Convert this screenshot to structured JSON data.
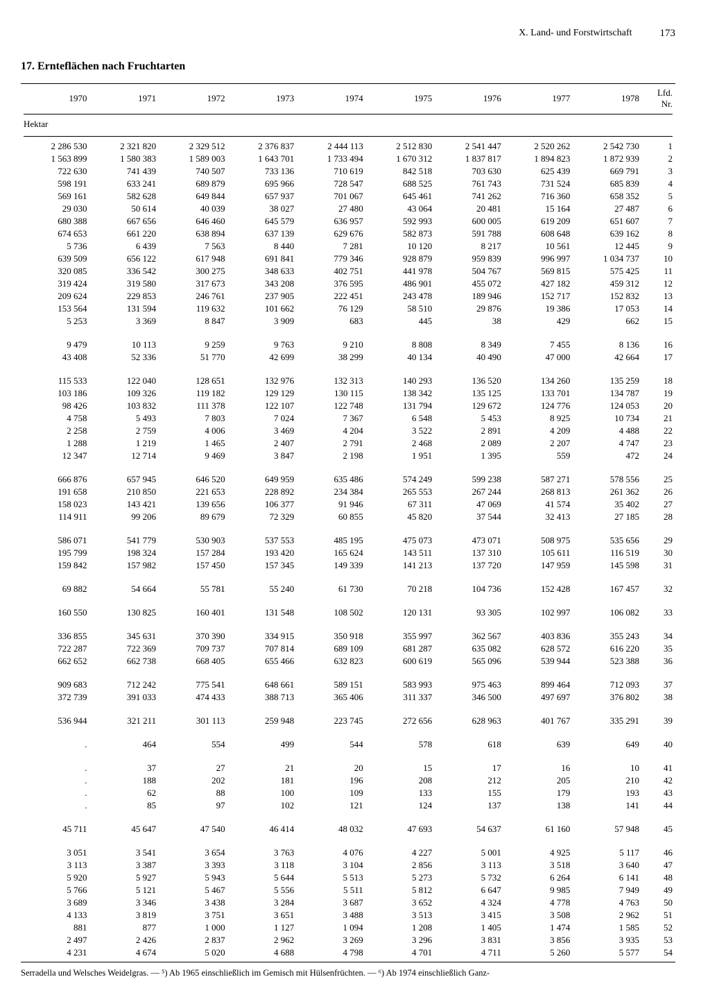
{
  "header": {
    "section": "X. Land- und Forstwirtschaft",
    "page": "173"
  },
  "title": "17. Ernteflächen nach Fruchtarten",
  "unit": "Hektar",
  "lfd_header": "Lfd.\nNr.",
  "years": [
    "1970",
    "1971",
    "1972",
    "1973",
    "1974",
    "1975",
    "1976",
    "1977",
    "1978"
  ],
  "groups": [
    [
      [
        "2 286 530",
        "2 321 820",
        "2 329 512",
        "2 376 837",
        "2 444 113",
        "2 512 830",
        "2 541 447",
        "2 520 262",
        "2 542 730",
        "1"
      ],
      [
        "1 563 899",
        "1 580 383",
        "1 589 003",
        "1 643 701",
        "1 733 494",
        "1 670 312",
        "1 837 817",
        "1 894 823",
        "1 872 939",
        "2"
      ],
      [
        "722 630",
        "741 439",
        "740 507",
        "733 136",
        "710 619",
        "842 518",
        "703 630",
        "625 439",
        "669 791",
        "3"
      ],
      [
        "598 191",
        "633 241",
        "689 879",
        "695 966",
        "728 547",
        "688 525",
        "761 743",
        "731 524",
        "685 839",
        "4"
      ],
      [
        "569 161",
        "582 628",
        "649 844",
        "657 937",
        "701 067",
        "645 461",
        "741 262",
        "716 360",
        "658 352",
        "5"
      ],
      [
        "29 030",
        "50 614",
        "40 039",
        "38 027",
        "27 480",
        "43 064",
        "20 481",
        "15 164",
        "27 487",
        "6"
      ],
      [
        "680 388",
        "667 656",
        "646 460",
        "645 579",
        "636 957",
        "592 993",
        "600 005",
        "619 209",
        "651 607",
        "7"
      ],
      [
        "674 653",
        "661 220",
        "638 894",
        "637 139",
        "629 676",
        "582 873",
        "591 788",
        "608 648",
        "639 162",
        "8"
      ],
      [
        "5 736",
        "6 439",
        "7 563",
        "8 440",
        "7 281",
        "10 120",
        "8 217",
        "10 561",
        "12 445",
        "9"
      ],
      [
        "639 509",
        "656 122",
        "617 948",
        "691 841",
        "779 346",
        "928 879",
        "959 839",
        "996 997",
        "1 034 737",
        "10"
      ],
      [
        "320 085",
        "336 542",
        "300 275",
        "348 633",
        "402 751",
        "441 978",
        "504 767",
        "569 815",
        "575 425",
        "11"
      ],
      [
        "319 424",
        "319 580",
        "317 673",
        "343 208",
        "376 595",
        "486 901",
        "455 072",
        "427 182",
        "459 312",
        "12"
      ],
      [
        "209 624",
        "229 853",
        "246 761",
        "237 905",
        "222 451",
        "243 478",
        "189 946",
        "152 717",
        "152 832",
        "13"
      ],
      [
        "153 564",
        "131 594",
        "119 632",
        "101 662",
        "76 129",
        "58 510",
        "29 876",
        "19 386",
        "17 053",
        "14"
      ],
      [
        "5 253",
        "3 369",
        "8 847",
        "3 909",
        "683",
        "445",
        "38",
        "429",
        "662",
        "15"
      ]
    ],
    [
      [
        "9 479",
        "10 113",
        "9 259",
        "9 763",
        "9 210",
        "8 808",
        "8 349",
        "7 455",
        "8 136",
        "16"
      ],
      [
        "43 408",
        "52 336",
        "51 770",
        "42 699",
        "38 299",
        "40 134",
        "40 490",
        "47 000",
        "42 664",
        "17"
      ]
    ],
    [
      [
        "115 533",
        "122 040",
        "128 651",
        "132 976",
        "132 313",
        "140 293",
        "136 520",
        "134 260",
        "135 259",
        "18"
      ],
      [
        "103 186",
        "109 326",
        "119 182",
        "129 129",
        "130 115",
        "138 342",
        "135 125",
        "133 701",
        "134 787",
        "19"
      ],
      [
        "98 426",
        "103 832",
        "111 378",
        "122 107",
        "122 748",
        "131 794",
        "129 672",
        "124 776",
        "124 053",
        "20"
      ],
      [
        "4 758",
        "5 493",
        "7 803",
        "7 024",
        "7 367",
        "6 548",
        "5 453",
        "8 925",
        "10 734",
        "21"
      ],
      [
        "2 258",
        "2 759",
        "4 006",
        "3 469",
        "4 204",
        "3 522",
        "2 891",
        "4 209",
        "4 488",
        "22"
      ],
      [
        "1 288",
        "1 219",
        "1 465",
        "2 407",
        "2 791",
        "2 468",
        "2 089",
        "2 207",
        "4 747",
        "23"
      ],
      [
        "12 347",
        "12 714",
        "9 469",
        "3 847",
        "2 198",
        "1 951",
        "1 395",
        "559",
        "472",
        "24"
      ]
    ],
    [
      [
        "666 876",
        "657 945",
        "646 520",
        "649 959",
        "635 486",
        "574 249",
        "599 238",
        "587 271",
        "578 556",
        "25"
      ],
      [
        "191 658",
        "210 850",
        "221 653",
        "228 892",
        "234 384",
        "265 553",
        "267 244",
        "268 813",
        "261 362",
        "26"
      ],
      [
        "158 023",
        "143 421",
        "139 656",
        "106 377",
        "91 946",
        "67 311",
        "47 069",
        "41 574",
        "35 402",
        "27"
      ],
      [
        "114 911",
        "99 206",
        "89 679",
        "72 329",
        "60 855",
        "45 820",
        "37 544",
        "32 413",
        "27 185",
        "28"
      ]
    ],
    [
      [
        "586 071",
        "541 779",
        "530 903",
        "537 553",
        "485 195",
        "475 073",
        "473 071",
        "508 975",
        "535 656",
        "29"
      ],
      [
        "195 799",
        "198 324",
        "157 284",
        "193 420",
        "165 624",
        "143 511",
        "137 310",
        "105 611",
        "116 519",
        "30"
      ],
      [
        "159 842",
        "157 982",
        "157 450",
        "157 345",
        "149 339",
        "141 213",
        "137 720",
        "147 959",
        "145 598",
        "31"
      ]
    ],
    [
      [
        "69 882",
        "54 664",
        "55 781",
        "55 240",
        "61 730",
        "70 218",
        "104 736",
        "152 428",
        "167 457",
        "32"
      ]
    ],
    [
      [
        "160 550",
        "130 825",
        "160 401",
        "131 548",
        "108 502",
        "120 131",
        "93 305",
        "102 997",
        "106 082",
        "33"
      ]
    ],
    [
      [
        "336 855",
        "345 631",
        "370 390",
        "334 915",
        "350 918",
        "355 997",
        "362 567",
        "403 836",
        "355 243",
        "34"
      ],
      [
        "722 287",
        "722 369",
        "709 737",
        "707 814",
        "689 109",
        "681 287",
        "635 082",
        "628 572",
        "616 220",
        "35"
      ],
      [
        "662 652",
        "662 738",
        "668 405",
        "655 466",
        "632 823",
        "600 619",
        "565 096",
        "539 944",
        "523 388",
        "36"
      ]
    ],
    [
      [
        "909 683",
        "712 242",
        "775 541",
        "648 661",
        "589 151",
        "583 993",
        "975 463",
        "899 464",
        "712 093",
        "37"
      ],
      [
        "372 739",
        "391 033",
        "474 433",
        "388 713",
        "365 406",
        "311 337",
        "346 500",
        "497 697",
        "376 802",
        "38"
      ]
    ],
    [
      [
        "536 944",
        "321 211",
        "301 113",
        "259 948",
        "223 745",
        "272 656",
        "628 963",
        "401 767",
        "335 291",
        "39"
      ]
    ],
    [
      [
        ".",
        "464",
        "554",
        "499",
        "544",
        "578",
        "618",
        "639",
        "649",
        "40"
      ]
    ],
    [
      [
        ".",
        "37",
        "27",
        "21",
        "20",
        "15",
        "17",
        "16",
        "10",
        "41"
      ],
      [
        ".",
        "188",
        "202",
        "181",
        "196",
        "208",
        "212",
        "205",
        "210",
        "42"
      ],
      [
        ".",
        "62",
        "88",
        "100",
        "109",
        "133",
        "155",
        "179",
        "193",
        "43"
      ],
      [
        ".",
        "85",
        "97",
        "102",
        "121",
        "124",
        "137",
        "138",
        "141",
        "44"
      ]
    ],
    [
      [
        "45 711",
        "45 647",
        "47 540",
        "46 414",
        "48 032",
        "47 693",
        "54 637",
        "61 160",
        "57 948",
        "45"
      ]
    ],
    [
      [
        "3 051",
        "3 541",
        "3 654",
        "3 763",
        "4 076",
        "4 227",
        "5 001",
        "4 925",
        "5 117",
        "46"
      ],
      [
        "3 113",
        "3 387",
        "3 393",
        "3 118",
        "3 104",
        "2 856",
        "3 113",
        "3 518",
        "3 640",
        "47"
      ],
      [
        "5 920",
        "5 927",
        "5 943",
        "5 644",
        "5 513",
        "5 273",
        "5 732",
        "6 264",
        "6 141",
        "48"
      ],
      [
        "5 766",
        "5 121",
        "5 467",
        "5 556",
        "5 511",
        "5 812",
        "6 647",
        "9 985",
        "7 949",
        "49"
      ],
      [
        "3 689",
        "3 346",
        "3 438",
        "3 284",
        "3 687",
        "3 652",
        "4 324",
        "4 778",
        "4 763",
        "50"
      ],
      [
        "4 133",
        "3 819",
        "3 751",
        "3 651",
        "3 488",
        "3 513",
        "3 415",
        "3 508",
        "2 962",
        "51"
      ],
      [
        "881",
        "877",
        "1 000",
        "1 127",
        "1 094",
        "1 208",
        "1 405",
        "1 474",
        "1 585",
        "52"
      ],
      [
        "2 497",
        "2 426",
        "2 837",
        "2 962",
        "3 269",
        "3 296",
        "3 831",
        "3 856",
        "3 935",
        "53"
      ],
      [
        "4 231",
        "4 674",
        "5 020",
        "4 688",
        "4 798",
        "4 701",
        "4 711",
        "5 260",
        "5 577",
        "54"
      ]
    ]
  ],
  "footnote": "Serradella und Welsches Weidelgras. — ⁵) Ab 1965 einschließlich im Gemisch mit Hülsenfrüchten. — ⁶) Ab 1974 einschließlich Ganz-"
}
